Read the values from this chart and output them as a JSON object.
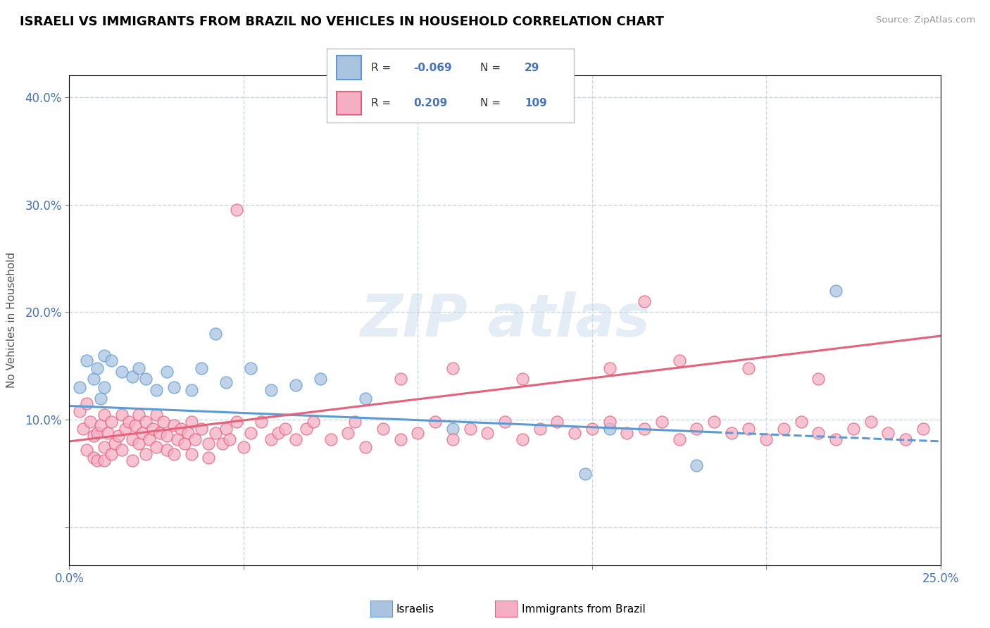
{
  "title": "ISRAELI VS IMMIGRANTS FROM BRAZIL NO VEHICLES IN HOUSEHOLD CORRELATION CHART",
  "source": "Source: ZipAtlas.com",
  "ylabel": "No Vehicles in Household",
  "color_israeli": "#aac4e0",
  "color_brazil": "#f4afc5",
  "color_line_israeli": "#5b9bd5",
  "color_line_brazil": "#e8607a",
  "grid_color": "#c8d8ea",
  "xrange": [
    0.0,
    0.25
  ],
  "yrange": [
    -0.035,
    0.42
  ],
  "isr_line": [
    0.113,
    0.08
  ],
  "bra_line": [
    0.08,
    0.178
  ],
  "isr_x": [
    0.003,
    0.005,
    0.007,
    0.008,
    0.009,
    0.01,
    0.01,
    0.012,
    0.015,
    0.018,
    0.02,
    0.022,
    0.025,
    0.028,
    0.03,
    0.035,
    0.038,
    0.042,
    0.045,
    0.052,
    0.058,
    0.065,
    0.072,
    0.085,
    0.11,
    0.148,
    0.155,
    0.18,
    0.22
  ],
  "isr_y": [
    0.13,
    0.155,
    0.138,
    0.148,
    0.12,
    0.16,
    0.13,
    0.155,
    0.145,
    0.14,
    0.148,
    0.138,
    0.128,
    0.145,
    0.13,
    0.128,
    0.148,
    0.18,
    0.135,
    0.148,
    0.128,
    0.132,
    0.138,
    0.12,
    0.092,
    0.05,
    0.092,
    0.058,
    0.22
  ],
  "bra_x": [
    0.003,
    0.004,
    0.005,
    0.005,
    0.006,
    0.007,
    0.007,
    0.008,
    0.008,
    0.009,
    0.01,
    0.01,
    0.01,
    0.011,
    0.012,
    0.012,
    0.013,
    0.014,
    0.015,
    0.015,
    0.016,
    0.017,
    0.018,
    0.018,
    0.019,
    0.02,
    0.02,
    0.021,
    0.022,
    0.022,
    0.023,
    0.024,
    0.025,
    0.025,
    0.026,
    0.027,
    0.028,
    0.028,
    0.03,
    0.03,
    0.031,
    0.032,
    0.033,
    0.034,
    0.035,
    0.035,
    0.036,
    0.038,
    0.04,
    0.04,
    0.042,
    0.044,
    0.045,
    0.046,
    0.048,
    0.05,
    0.052,
    0.055,
    0.058,
    0.06,
    0.062,
    0.065,
    0.068,
    0.07,
    0.075,
    0.08,
    0.082,
    0.085,
    0.09,
    0.095,
    0.1,
    0.105,
    0.11,
    0.115,
    0.12,
    0.125,
    0.13,
    0.135,
    0.14,
    0.145,
    0.15,
    0.155,
    0.16,
    0.165,
    0.17,
    0.175,
    0.18,
    0.185,
    0.19,
    0.195,
    0.2,
    0.205,
    0.21,
    0.215,
    0.22,
    0.225,
    0.23,
    0.235,
    0.24,
    0.245,
    0.165,
    0.048,
    0.095,
    0.11,
    0.13,
    0.155,
    0.175,
    0.195,
    0.215
  ],
  "bra_y": [
    0.108,
    0.092,
    0.115,
    0.072,
    0.098,
    0.085,
    0.065,
    0.088,
    0.062,
    0.095,
    0.105,
    0.075,
    0.062,
    0.088,
    0.098,
    0.068,
    0.078,
    0.085,
    0.105,
    0.072,
    0.092,
    0.098,
    0.082,
    0.062,
    0.095,
    0.105,
    0.078,
    0.088,
    0.098,
    0.068,
    0.082,
    0.092,
    0.105,
    0.075,
    0.088,
    0.098,
    0.072,
    0.085,
    0.095,
    0.068,
    0.082,
    0.092,
    0.078,
    0.088,
    0.098,
    0.068,
    0.082,
    0.092,
    0.078,
    0.065,
    0.088,
    0.078,
    0.092,
    0.082,
    0.098,
    0.075,
    0.088,
    0.098,
    0.082,
    0.088,
    0.092,
    0.082,
    0.092,
    0.098,
    0.082,
    0.088,
    0.098,
    0.075,
    0.092,
    0.082,
    0.088,
    0.098,
    0.082,
    0.092,
    0.088,
    0.098,
    0.082,
    0.092,
    0.098,
    0.088,
    0.092,
    0.098,
    0.088,
    0.092,
    0.098,
    0.082,
    0.092,
    0.098,
    0.088,
    0.092,
    0.082,
    0.092,
    0.098,
    0.088,
    0.082,
    0.092,
    0.098,
    0.088,
    0.082,
    0.092,
    0.21,
    0.295,
    0.138,
    0.148,
    0.138,
    0.148,
    0.155,
    0.148,
    0.138
  ]
}
